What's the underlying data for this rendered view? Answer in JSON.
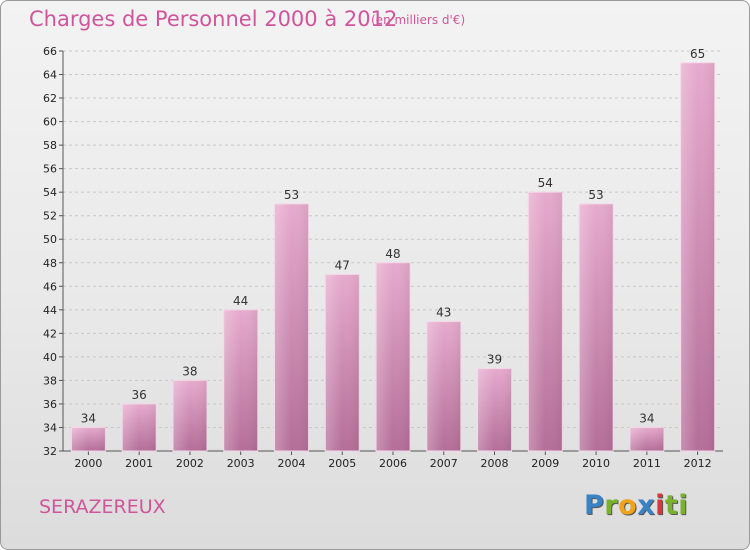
{
  "header": {
    "title": "Charges de Personnel 2000 à 2012",
    "subtitle": "(en milliers d'€)"
  },
  "footer": {
    "city": "SERAZEREUX",
    "logo_text": "Proxiti"
  },
  "colors": {
    "title": "#d0559b",
    "bar_top": "#e6aacd",
    "bar_bottom": "#b46e98",
    "grid": "#c8c8c8"
  },
  "chart_data": {
    "type": "bar",
    "categories": [
      "2000",
      "2001",
      "2002",
      "2003",
      "2004",
      "2005",
      "2006",
      "2007",
      "2008",
      "2009",
      "2010",
      "2011",
      "2012"
    ],
    "values": [
      34,
      36,
      38,
      44,
      53,
      47,
      48,
      43,
      39,
      54,
      53,
      34,
      65
    ],
    "title": "Charges de Personnel 2000 à 2012",
    "subtitle": "(en milliers d'€)",
    "xlabel": "",
    "ylabel": "",
    "ylim": [
      32,
      66
    ],
    "yticks": [
      32,
      34,
      36,
      38,
      40,
      42,
      44,
      46,
      48,
      50,
      52,
      54,
      56,
      58,
      60,
      62,
      64,
      66
    ],
    "grid": true,
    "legend": "none"
  }
}
